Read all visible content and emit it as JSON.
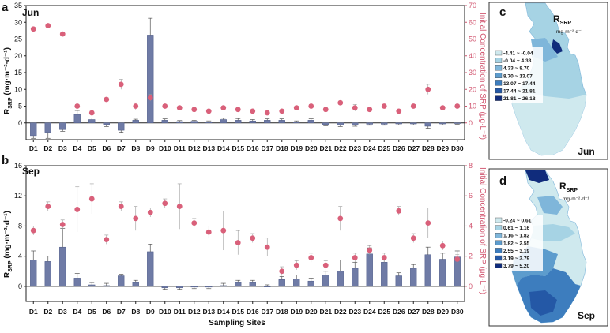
{
  "xlabel": "Sampling Sites",
  "colors": {
    "bar": "#6f7ba6",
    "bar_edge": "#4d5a86",
    "dot": "#d9607a",
    "right_axis": "#d1556f",
    "error": "#999999"
  },
  "chart_data": [
    {
      "panel": "a",
      "type": "bar",
      "title": "Jun",
      "ylabel": "R_SRP (mg·m⁻²·d⁻¹)",
      "ylabel_main": "R",
      "ylabel_sub": "SRP",
      "ylabel_rest": " (mg·m⁻²·d⁻¹)",
      "y2label": "Initial Concentration of SRP (μg·L⁻¹)",
      "ylim": [
        -5,
        35
      ],
      "yticks": [
        "0",
        "5",
        "10",
        "15",
        "20",
        "25",
        "30",
        "35"
      ],
      "y2lim": [
        -10,
        70
      ],
      "y2ticks": [
        "0",
        "10",
        "20",
        "30",
        "40",
        "50",
        "60",
        "70"
      ],
      "categories": [
        "D1",
        "D2",
        "D3",
        "D4",
        "D5",
        "D6",
        "D7",
        "D8",
        "D9",
        "D10",
        "D11",
        "D12",
        "D13",
        "D14",
        "D15",
        "D16",
        "D17",
        "D18",
        "D19",
        "D20",
        "D21",
        "D22",
        "D23",
        "D24",
        "D25",
        "D26",
        "D27",
        "D28",
        "D29",
        "D30"
      ],
      "values": [
        -3.8,
        -2.8,
        -2.0,
        2.5,
        1.0,
        -0.5,
        -2.2,
        0.8,
        26.2,
        0.8,
        0.4,
        0.5,
        0.3,
        1.0,
        0.8,
        0.6,
        0.8,
        0.8,
        0.3,
        0.8,
        -0.5,
        -0.7,
        -0.6,
        -0.4,
        -0.4,
        -0.3,
        -0.3,
        -1.0,
        -0.3,
        -0.1
      ],
      "errors": [
        0.8,
        1.8,
        0.5,
        1.2,
        0.5,
        0.6,
        0.6,
        0.3,
        5.0,
        0.4,
        0.3,
        0.3,
        0.3,
        0.4,
        0.5,
        0.4,
        0.4,
        0.4,
        0.3,
        0.4,
        0.4,
        0.4,
        0.4,
        0.3,
        0.3,
        0.3,
        0.3,
        0.6,
        0.3,
        0.3
      ],
      "conc": [
        56,
        58,
        53,
        10,
        6,
        14,
        23,
        10,
        15,
        10,
        9,
        8,
        7,
        9,
        8,
        7,
        6,
        7,
        9,
        10,
        8,
        12,
        9,
        8,
        10,
        7,
        10,
        20,
        9,
        10
      ],
      "conc_err": [
        1,
        1,
        1,
        1,
        1,
        1,
        3,
        2,
        2,
        1,
        1,
        1,
        1,
        1,
        1,
        1,
        1,
        1,
        1,
        1,
        1,
        1,
        2,
        1,
        1,
        1,
        1,
        3,
        1,
        1
      ]
    },
    {
      "panel": "b",
      "type": "bar",
      "title": "Sep",
      "ylabel": "R_SRP (mg·m⁻²·d⁻¹)",
      "ylabel_main": "R",
      "ylabel_sub": "SRP",
      "ylabel_rest": " (mg·m⁻²·d⁻¹)",
      "y2label": "Initial Concentration of SRP (μg·L⁻¹)",
      "ylim": [
        -2,
        16
      ],
      "yticks": [
        "0",
        "4",
        "8",
        "12",
        "16"
      ],
      "y2lim": [
        -1,
        8
      ],
      "y2ticks": [
        "0",
        "2",
        "4",
        "6",
        "8"
      ],
      "categories": [
        "D1",
        "D2",
        "D3",
        "D4",
        "D5",
        "D6",
        "D7",
        "D8",
        "D9",
        "D10",
        "D11",
        "D12",
        "D13",
        "D14",
        "D15",
        "D16",
        "D17",
        "D18",
        "D19",
        "D20",
        "D21",
        "D22",
        "D23",
        "D24",
        "D25",
        "D26",
        "D27",
        "D28",
        "D29",
        "D30"
      ],
      "values": [
        3.5,
        3.3,
        5.2,
        1.1,
        0.2,
        0.1,
        1.4,
        0.5,
        4.6,
        -0.2,
        -0.2,
        -0.1,
        -0.1,
        0.1,
        0.5,
        0.5,
        0.0,
        0.9,
        1.0,
        0.7,
        1.5,
        2.0,
        2.4,
        4.3,
        3.2,
        1.4,
        2.4,
        4.2,
        3.6,
        3.9
      ],
      "errors": [
        1.2,
        0.7,
        2.5,
        0.6,
        0.3,
        0.3,
        0.2,
        0.3,
        1.0,
        0.2,
        0.2,
        0.2,
        0.2,
        0.3,
        0.3,
        0.3,
        0.2,
        0.4,
        0.5,
        0.4,
        0.5,
        1.5,
        0.8,
        0.8,
        0.6,
        0.4,
        0.5,
        1.0,
        0.8,
        0.8
      ],
      "conc": [
        3.7,
        5.3,
        4.1,
        5.1,
        5.8,
        3.1,
        5.3,
        4.5,
        4.9,
        5.5,
        5.3,
        4.2,
        3.6,
        3.7,
        2.9,
        3.2,
        2.6,
        1.0,
        1.4,
        1.9,
        1.4,
        4.5,
        1.9,
        2.4,
        1.9,
        5.0,
        3.2,
        4.2,
        2.7,
        1.8
      ],
      "conc_err": [
        0.3,
        0.3,
        0.3,
        1.5,
        1.0,
        0.3,
        0.3,
        0.8,
        0.3,
        0.3,
        1.5,
        0.3,
        0.4,
        1.3,
        0.8,
        0.3,
        0.6,
        0.3,
        0.3,
        0.3,
        0.3,
        0.8,
        0.3,
        0.3,
        0.3,
        0.3,
        0.3,
        1.0,
        0.3,
        0.3
      ]
    }
  ],
  "maps": [
    {
      "panel": "c",
      "month": "Jun",
      "title_main": "R",
      "title_sub": "SRP",
      "unit": "mg·m⁻²·d⁻¹",
      "legend": [
        {
          "label": "-4.41 ~ -0.04",
          "color": "#cfe9ee"
        },
        {
          "label": "-0.04 ~ 4.33",
          "color": "#a6d3e4"
        },
        {
          "label": "4.33 ~ 8.70",
          "color": "#7fb6da"
        },
        {
          "label": "8.70 ~ 13.07",
          "color": "#5d9ccd"
        },
        {
          "label": "13.07 ~ 17.44",
          "color": "#3d7dbe"
        },
        {
          "label": "17.44 ~ 21.81",
          "color": "#2458a6"
        },
        {
          "label": "21.81 ~ 26.18",
          "color": "#102c7c"
        }
      ]
    },
    {
      "panel": "d",
      "month": "Sep",
      "title_main": "R",
      "title_sub": "SRP",
      "unit": "mg·m⁻²·d⁻¹",
      "legend": [
        {
          "label": "-0.24 ~ 0.61",
          "color": "#cfe9ee"
        },
        {
          "label": "0.61 ~ 1.16",
          "color": "#a6d3e4"
        },
        {
          "label": "1.16 ~ 1.82",
          "color": "#7fb6da"
        },
        {
          "label": "1.82 ~ 2.55",
          "color": "#5d9ccd"
        },
        {
          "label": "2.55 ~ 3.19",
          "color": "#3d7dbe"
        },
        {
          "label": "3.19 ~ 3.79",
          "color": "#2458a6"
        },
        {
          "label": "3.79 ~ 5.20",
          "color": "#102c7c"
        }
      ]
    }
  ]
}
